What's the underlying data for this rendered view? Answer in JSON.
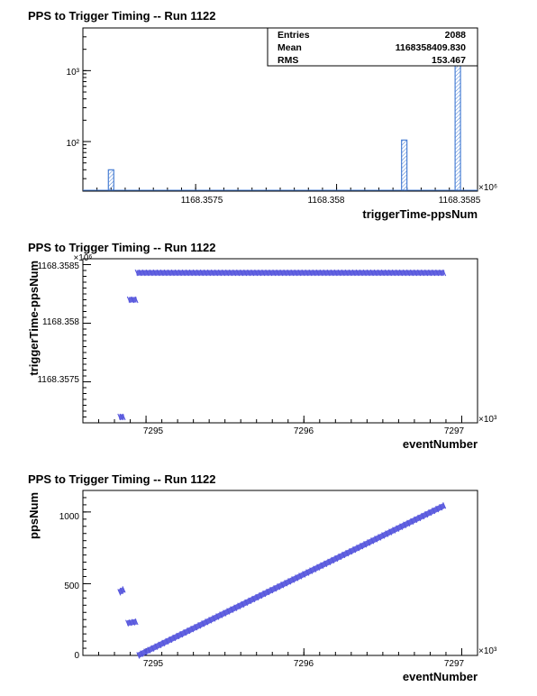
{
  "chart_data": [
    {
      "type": "bar",
      "title": "PPS to Trigger Timing -- Run 1122",
      "xlabel": "triggerTime-ppsNum",
      "ylabel": "",
      "x_exponent": "×10⁶",
      "y_scale": "log",
      "xlim": [
        1168.3571,
        1168.3585
      ],
      "ylim": [
        20,
        4000
      ],
      "x_ticks": [
        "1168.3575",
        "1168.358",
        "1168.3585"
      ],
      "y_ticks": [
        "10²",
        "10³"
      ],
      "bins": [
        {
          "x": 1168.3572,
          "value": 40
        },
        {
          "x": 1168.35824,
          "value": 105
        },
        {
          "x": 1168.35843,
          "value": 1943
        }
      ],
      "stats": {
        "rows": [
          {
            "label": "Entries",
            "value": "2088"
          },
          {
            "label": "Mean",
            "value": "1168358409.830"
          },
          {
            "label": "RMS",
            "value": "153.467"
          }
        ],
        "position": "top-right"
      },
      "color": "#4a7fd4"
    },
    {
      "type": "scatter",
      "title": "PPS to Trigger Timing -- Run 1122",
      "xlabel": "eventNumber",
      "ylabel": "triggerTime-ppsNum",
      "x_exponent": "×10³",
      "y_exponent": "×10⁶",
      "xlim": [
        7294.6,
        7297.1
      ],
      "ylim": [
        1168.35715,
        1168.35855
      ],
      "x_ticks": [
        "7295",
        "7296",
        "7297"
      ],
      "y_ticks": [
        "1168.3575",
        "1168.358",
        "1168.3585"
      ],
      "segments": [
        {
          "x0": 7294.83,
          "x1": 7294.86,
          "y0": 1168.3572,
          "y1": 1168.3572
        },
        {
          "x0": 7294.89,
          "x1": 7294.94,
          "y0": 1168.3582,
          "y1": 1168.3582
        },
        {
          "x0": 7294.94,
          "x1": 7296.89,
          "y0": 1168.35843,
          "y1": 1168.35843
        }
      ],
      "color": "#5555dd"
    },
    {
      "type": "scatter",
      "title": "PPS to Trigger Timing -- Run 1122",
      "xlabel": "eventNumber",
      "ylabel": "ppsNum",
      "x_exponent": "×10³",
      "xlim": [
        7294.6,
        7297.1
      ],
      "ylim": [
        0,
        1150
      ],
      "x_ticks": [
        "7295",
        "7296",
        "7297"
      ],
      "y_ticks": [
        "0",
        "500",
        "1000"
      ],
      "segments": [
        {
          "x0": 7294.83,
          "x1": 7294.86,
          "y0": 440,
          "y1": 460
        },
        {
          "x0": 7294.88,
          "x1": 7294.94,
          "y0": 225,
          "y1": 235
        },
        {
          "x0": 7294.95,
          "x1": 7296.89,
          "y0": 0,
          "y1": 1045
        }
      ],
      "color": "#5555dd"
    }
  ]
}
